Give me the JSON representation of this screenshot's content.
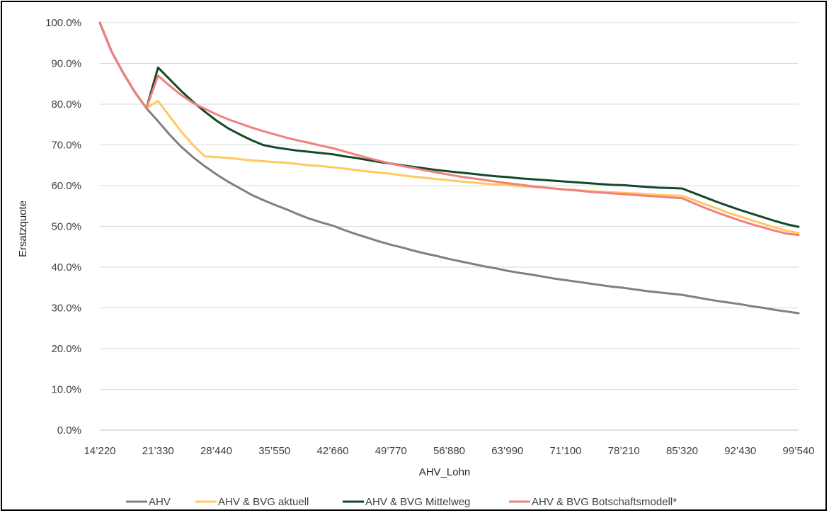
{
  "chart_data": {
    "type": "line",
    "title": "",
    "xlabel": "AHV_Lohn",
    "ylabel": "Ersatzquote",
    "x_ticks": [
      "14’220",
      "21’330",
      "28’440",
      "35’550",
      "42’660",
      "49’770",
      "56’880",
      "63’990",
      "71’100",
      "78’210",
      "85’320",
      "92’430",
      "99’540"
    ],
    "xlim": [
      14220,
      99540
    ],
    "ylim": [
      0,
      100
    ],
    "y_ticks": [
      "0.0%",
      "10.0%",
      "20.0%",
      "30.0%",
      "40.0%",
      "50.0%",
      "60.0%",
      "70.0%",
      "80.0%",
      "90.0%",
      "100.0%"
    ],
    "grid": true,
    "legend_position": "bottom",
    "x": [
      14220,
      15642,
      17064,
      18486,
      19908,
      21330,
      22752,
      24174,
      25596,
      27018,
      28440,
      29862,
      31284,
      32706,
      34128,
      35550,
      36972,
      38394,
      39816,
      41238,
      42660,
      44082,
      45504,
      46926,
      48348,
      49770,
      51192,
      52614,
      54036,
      55458,
      56880,
      58302,
      59724,
      61146,
      62568,
      63990,
      65412,
      66834,
      68256,
      69678,
      71100,
      72522,
      73944,
      75366,
      76788,
      78210,
      79632,
      81054,
      82476,
      83898,
      85320,
      86742,
      88164,
      89586,
      91008,
      92430,
      93852,
      95274,
      96696,
      98118,
      99540
    ],
    "series": [
      {
        "name": "AHV",
        "color": "#808080",
        "values": [
          100.0,
          93.0,
          87.7,
          83.0,
          79.0,
          75.8,
          72.5,
          69.5,
          67.0,
          64.8,
          62.8,
          61.0,
          59.4,
          57.8,
          56.5,
          55.3,
          54.2,
          53.0,
          51.9,
          51.0,
          50.2,
          49.1,
          48.1,
          47.2,
          46.3,
          45.5,
          44.8,
          44.0,
          43.3,
          42.7,
          42.0,
          41.4,
          40.8,
          40.2,
          39.7,
          39.1,
          38.6,
          38.2,
          37.7,
          37.2,
          36.8,
          36.4,
          36.0,
          35.6,
          35.2,
          34.9,
          34.5,
          34.1,
          33.8,
          33.5,
          33.2,
          32.7,
          32.2,
          31.7,
          31.3,
          30.9,
          30.4,
          30.0,
          29.5,
          29.1,
          28.7
        ]
      },
      {
        "name": "AHV & BVG aktuell",
        "color": "#ffc960",
        "values": [
          100.0,
          93.0,
          87.7,
          83.0,
          79.0,
          80.8,
          77.0,
          73.2,
          70.0,
          67.2,
          67.0,
          66.8,
          66.5,
          66.2,
          66.0,
          65.8,
          65.6,
          65.3,
          65.0,
          64.8,
          64.5,
          64.2,
          63.8,
          63.5,
          63.2,
          62.9,
          62.5,
          62.2,
          61.9,
          61.6,
          61.3,
          61.0,
          60.8,
          60.5,
          60.3,
          60.1,
          59.9,
          59.7,
          59.5,
          59.3,
          59.1,
          58.9,
          58.7,
          58.5,
          58.4,
          58.2,
          58.1,
          57.9,
          57.7,
          57.6,
          57.5,
          56.5,
          55.4,
          54.4,
          53.3,
          52.4,
          51.5,
          50.6,
          49.7,
          48.9,
          48.4
        ]
      },
      {
        "name": "AHV & BVG Mittelweg",
        "color": "#124a28",
        "values": [
          100.0,
          93.0,
          87.7,
          83.0,
          79.0,
          89.0,
          86.1,
          83.2,
          80.6,
          78.2,
          76.0,
          74.1,
          72.6,
          71.2,
          70.0,
          69.4,
          69.0,
          68.6,
          68.3,
          68.0,
          67.7,
          67.2,
          66.8,
          66.3,
          65.8,
          65.4,
          65.0,
          64.6,
          64.2,
          63.8,
          63.5,
          63.2,
          62.9,
          62.6,
          62.3,
          62.1,
          61.8,
          61.6,
          61.4,
          61.2,
          61.0,
          60.8,
          60.6,
          60.4,
          60.2,
          60.1,
          59.9,
          59.7,
          59.5,
          59.4,
          59.3,
          58.2,
          57.1,
          56.0,
          55.0,
          54.0,
          53.1,
          52.2,
          51.3,
          50.5,
          49.9
        ]
      },
      {
        "name": "AHV & BVG Botschaftsmodell*",
        "color": "#f08080",
        "values": [
          100.0,
          93.0,
          87.7,
          83.0,
          79.0,
          87.0,
          84.5,
          82.2,
          80.3,
          78.9,
          77.5,
          76.3,
          75.3,
          74.3,
          73.4,
          72.6,
          71.8,
          71.1,
          70.5,
          69.8,
          69.2,
          68.4,
          67.6,
          66.8,
          66.1,
          65.4,
          64.8,
          64.3,
          63.7,
          63.2,
          62.7,
          62.2,
          61.8,
          61.4,
          61.0,
          60.6,
          60.3,
          59.9,
          59.6,
          59.3,
          59.0,
          58.8,
          58.5,
          58.3,
          58.1,
          57.9,
          57.7,
          57.5,
          57.3,
          57.1,
          56.9,
          55.7,
          54.5,
          53.4,
          52.4,
          51.4,
          50.5,
          49.7,
          48.9,
          48.2,
          47.9
        ]
      }
    ]
  }
}
